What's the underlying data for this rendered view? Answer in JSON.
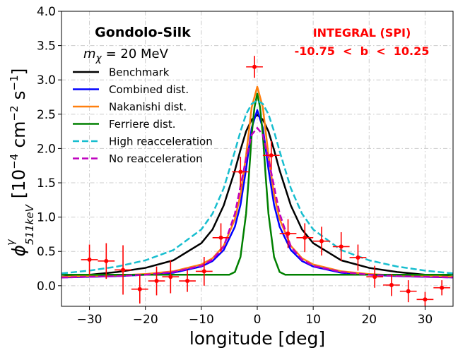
{
  "chart_data": {
    "type": "line",
    "title": "Gondolo-Silk",
    "subtitle": "m_χ = 20 MeV",
    "subtitle_var": "m",
    "subtitle_sub": "χ",
    "subtitle_rest": " = 20 MeV",
    "xlabel": "longitude [deg]",
    "ylabel_parts": {
      "phi": "ϕ",
      "sup": "γ",
      "sub": "511keV",
      "units": " [10",
      "exp1": "−4",
      "cm": " cm",
      "exp2": "−2",
      "s": " s",
      "exp3": "−1",
      "close": "]"
    },
    "xlim": [
      -35,
      35
    ],
    "ylim": [
      -0.3,
      4.0
    ],
    "xticks": [
      -30,
      -20,
      -10,
      0,
      10,
      20,
      30
    ],
    "xtick_labels": [
      "−30",
      "−20",
      "−10",
      "0",
      "10",
      "20",
      "30"
    ],
    "yticks": [
      0.0,
      0.5,
      1.0,
      1.5,
      2.0,
      2.5,
      3.0,
      3.5,
      4.0
    ],
    "ytick_labels": [
      "0.0",
      "0.5",
      "1.0",
      "1.5",
      "2.0",
      "2.5",
      "3.0",
      "3.5",
      "4.0"
    ],
    "grid": true,
    "legend_location": "upper-left",
    "observation": {
      "label": "INTEGRAL (SPI)",
      "range_label": "-10.75  <  b  <  10.25",
      "color": "#ff0000",
      "xerr": 1.5,
      "points": [
        {
          "x": -30.0,
          "y": 0.38,
          "yerr": 0.22
        },
        {
          "x": -27.0,
          "y": 0.36,
          "yerr": 0.26
        },
        {
          "x": -24.0,
          "y": 0.23,
          "yerr": 0.36
        },
        {
          "x": -21.0,
          "y": -0.05,
          "yerr": 0.21
        },
        {
          "x": -18.0,
          "y": 0.07,
          "yerr": 0.21
        },
        {
          "x": -15.5,
          "y": 0.13,
          "yerr": 0.24
        },
        {
          "x": -12.5,
          "y": 0.07,
          "yerr": 0.16
        },
        {
          "x": -9.5,
          "y": 0.21,
          "yerr": 0.21
        },
        {
          "x": -6.5,
          "y": 0.7,
          "yerr": 0.21
        },
        {
          "x": -3.0,
          "y": 1.66,
          "yerr": 0.22
        },
        {
          "x": -0.5,
          "y": 3.19,
          "yerr": 0.16
        },
        {
          "x": 2.5,
          "y": 1.9,
          "yerr": 0.21
        },
        {
          "x": 5.5,
          "y": 0.76,
          "yerr": 0.21
        },
        {
          "x": 8.5,
          "y": 0.7,
          "yerr": 0.21
        },
        {
          "x": 11.5,
          "y": 0.65,
          "yerr": 0.21
        },
        {
          "x": 15.0,
          "y": 0.57,
          "yerr": 0.21
        },
        {
          "x": 18.0,
          "y": 0.41,
          "yerr": 0.19
        },
        {
          "x": 21.0,
          "y": 0.13,
          "yerr": 0.16
        },
        {
          "x": 24.0,
          "y": 0.01,
          "yerr": 0.16
        },
        {
          "x": 27.0,
          "y": -0.08,
          "yerr": 0.16
        },
        {
          "x": 30.0,
          "y": -0.2,
          "yerr": 0.11
        },
        {
          "x": 33.0,
          "y": -0.03,
          "yerr": 0.11
        }
      ]
    },
    "series": [
      {
        "name": "Benchmark",
        "color": "#000000",
        "dash": "solid",
        "x": [
          -35,
          -30,
          -25,
          -20,
          -15,
          -10,
          -8,
          -6,
          -4,
          -3,
          -2,
          -1,
          0,
          1,
          2,
          3,
          4,
          6,
          8,
          10,
          15,
          20,
          25,
          30,
          35
        ],
        "y": [
          0.13,
          0.16,
          0.2,
          0.26,
          0.37,
          0.62,
          0.82,
          1.17,
          1.68,
          1.98,
          2.25,
          2.42,
          2.49,
          2.42,
          2.25,
          1.98,
          1.68,
          1.17,
          0.82,
          0.62,
          0.37,
          0.26,
          0.2,
          0.16,
          0.13
        ]
      },
      {
        "name": "Combined dist.",
        "color": "#0000ff",
        "dash": "solid",
        "x": [
          -35,
          -30,
          -25,
          -20,
          -15,
          -10,
          -8,
          -6,
          -4,
          -3,
          -2,
          -1,
          0,
          1,
          2,
          3,
          4,
          6,
          8,
          10,
          15,
          20,
          25,
          30,
          35
        ],
        "y": [
          0.12,
          0.13,
          0.14,
          0.16,
          0.19,
          0.28,
          0.36,
          0.52,
          0.86,
          1.18,
          1.7,
          2.3,
          2.56,
          2.3,
          1.7,
          1.18,
          0.86,
          0.52,
          0.36,
          0.28,
          0.19,
          0.16,
          0.14,
          0.13,
          0.12
        ]
      },
      {
        "name": "Nakanishi dist.",
        "color": "#ff7f0e",
        "dash": "solid",
        "x": [
          -35,
          -30,
          -25,
          -20,
          -15,
          -10,
          -8,
          -6,
          -4,
          -3,
          -2,
          -1,
          0,
          1,
          2,
          3,
          4,
          6,
          8,
          10,
          15,
          20,
          25,
          30,
          35
        ],
        "y": [
          0.13,
          0.14,
          0.15,
          0.17,
          0.21,
          0.31,
          0.4,
          0.58,
          0.97,
          1.33,
          1.9,
          2.6,
          2.9,
          2.6,
          1.9,
          1.33,
          0.97,
          0.58,
          0.4,
          0.31,
          0.21,
          0.17,
          0.15,
          0.14,
          0.13
        ]
      },
      {
        "name": "Ferriere dist.",
        "color": "#008000",
        "dash": "solid",
        "x": [
          -35,
          -20,
          -5,
          -4,
          -3,
          -2,
          -1.5,
          -1,
          -0.5,
          0,
          0.5,
          1,
          1.5,
          2,
          3,
          4,
          5,
          20,
          35
        ],
        "y": [
          0.16,
          0.16,
          0.16,
          0.2,
          0.42,
          1.05,
          1.6,
          2.2,
          2.6,
          2.8,
          2.6,
          2.2,
          1.6,
          1.05,
          0.42,
          0.2,
          0.16,
          0.16,
          0.16
        ]
      },
      {
        "name": "High reacceleration",
        "color": "#17becf",
        "dash": "dashed",
        "x": [
          -35,
          -30,
          -25,
          -20,
          -15,
          -10,
          -8,
          -6,
          -4,
          -3,
          -2,
          -1,
          0,
          1,
          2,
          3,
          4,
          6,
          8,
          10,
          15,
          20,
          25,
          30,
          35
        ],
        "y": [
          0.18,
          0.22,
          0.28,
          0.37,
          0.52,
          0.82,
          1.05,
          1.42,
          1.96,
          2.25,
          2.5,
          2.65,
          2.7,
          2.65,
          2.5,
          2.25,
          1.96,
          1.42,
          1.05,
          0.82,
          0.52,
          0.37,
          0.28,
          0.22,
          0.18
        ]
      },
      {
        "name": "No reacceleration",
        "color": "#bf00bf",
        "dash": "dashed",
        "x": [
          -35,
          -30,
          -25,
          -20,
          -15,
          -10,
          -8,
          -6,
          -4,
          -3,
          -2,
          -1,
          0,
          1,
          2,
          3,
          4,
          6,
          8,
          10,
          15,
          20,
          25,
          30,
          35
        ],
        "y": [
          0.12,
          0.13,
          0.14,
          0.16,
          0.2,
          0.29,
          0.38,
          0.57,
          1.05,
          1.45,
          1.85,
          2.2,
          2.3,
          2.2,
          1.85,
          1.45,
          1.05,
          0.57,
          0.38,
          0.29,
          0.2,
          0.16,
          0.14,
          0.13,
          0.12
        ]
      }
    ]
  }
}
